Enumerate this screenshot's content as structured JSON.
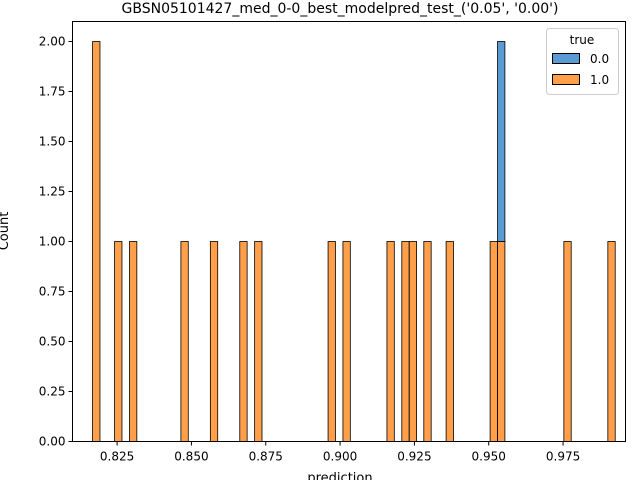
{
  "chart_data": {
    "type": "bar",
    "title": "GBSN05101427_med_0-0_best_modelpred_test_('0.05', '0.00')",
    "xlabel": "prediction",
    "ylabel": "Count",
    "xlim": [
      0.81,
      0.996
    ],
    "ylim": [
      0,
      2.1
    ],
    "x_ticks": [
      "0.825",
      "0.850",
      "0.875",
      "0.900",
      "0.925",
      "0.950",
      "0.975"
    ],
    "x_tick_values": [
      0.825,
      0.85,
      0.875,
      0.9,
      0.925,
      0.95,
      0.975
    ],
    "y_ticks": [
      "0.00",
      "0.25",
      "0.50",
      "0.75",
      "1.00",
      "1.25",
      "1.50",
      "1.75",
      "2.00"
    ],
    "y_tick_values": [
      0,
      0.25,
      0.5,
      0.75,
      1.0,
      1.25,
      1.5,
      1.75,
      2.0
    ],
    "bin_width": 0.00248,
    "series": [
      {
        "name": "1.0",
        "color": "#ff9f4a",
        "bins": [
          {
            "x": 0.818,
            "count": 2
          },
          {
            "x": 0.8254,
            "count": 1
          },
          {
            "x": 0.8304,
            "count": 1
          },
          {
            "x": 0.8477,
            "count": 1
          },
          {
            "x": 0.8576,
            "count": 1
          },
          {
            "x": 0.8675,
            "count": 1
          },
          {
            "x": 0.8725,
            "count": 1
          },
          {
            "x": 0.8972,
            "count": 1
          },
          {
            "x": 0.9022,
            "count": 1
          },
          {
            "x": 0.917,
            "count": 1
          },
          {
            "x": 0.922,
            "count": 1
          },
          {
            "x": 0.9245,
            "count": 1
          },
          {
            "x": 0.9294,
            "count": 1
          },
          {
            "x": 0.9369,
            "count": 1
          },
          {
            "x": 0.9517,
            "count": 1
          },
          {
            "x": 0.9542,
            "count": 1
          },
          {
            "x": 0.9765,
            "count": 1
          },
          {
            "x": 0.9913,
            "count": 1
          }
        ]
      },
      {
        "name": "0.0",
        "color": "#5a9bd4",
        "bins": [
          {
            "x": 0.9542,
            "count": 1
          }
        ]
      }
    ],
    "legend": {
      "title": "true",
      "placement": "upper right",
      "entries": [
        {
          "label": "0.0",
          "color": "#5a9bd4"
        },
        {
          "label": "1.0",
          "color": "#ff9f4a"
        }
      ]
    },
    "grid": false
  }
}
